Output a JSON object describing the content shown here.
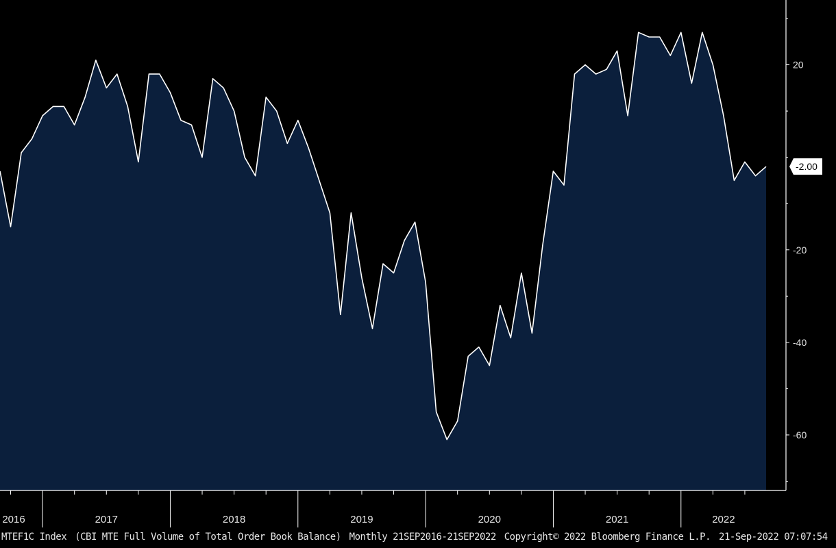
{
  "chart_data": {
    "type": "area",
    "title": "",
    "xlabel": "",
    "ylabel": "",
    "ylim": [
      -72,
      34
    ],
    "xlim": [
      "2016-09",
      "2022-09"
    ],
    "y_ticks": [
      20,
      -20,
      -40,
      -60
    ],
    "x_tick_labels": [
      "2016",
      "2017",
      "2018",
      "2019",
      "2020",
      "2021",
      "2022"
    ],
    "last_value_label": "-2.00",
    "grid": false,
    "colors": {
      "fill": "#0b1f3c",
      "line": "#ffffff",
      "background": "#000000",
      "marker_bg": "#ffffff",
      "marker_text": "#000000"
    },
    "series": [
      {
        "x": [
          "2016-09",
          "2016-10",
          "2016-11",
          "2016-12",
          "2017-01",
          "2017-02",
          "2017-03",
          "2017-04",
          "2017-05",
          "2017-06",
          "2017-07",
          "2017-08",
          "2017-09",
          "2017-10",
          "2017-11",
          "2017-12",
          "2018-01",
          "2018-02",
          "2018-03",
          "2018-04",
          "2018-05",
          "2018-06",
          "2018-07",
          "2018-08",
          "2018-09",
          "2018-10",
          "2018-11",
          "2018-12",
          "2019-01",
          "2019-02",
          "2019-03",
          "2019-04",
          "2019-05",
          "2019-06",
          "2019-07",
          "2019-08",
          "2019-09",
          "2019-10",
          "2019-11",
          "2019-12",
          "2020-01",
          "2020-02",
          "2020-03",
          "2020-04",
          "2020-05",
          "2020-06",
          "2020-07",
          "2020-08",
          "2020-09",
          "2020-10",
          "2020-11",
          "2020-12",
          "2021-01",
          "2021-02",
          "2021-03",
          "2021-04",
          "2021-05",
          "2021-06",
          "2021-07",
          "2021-08",
          "2021-09",
          "2021-10",
          "2021-11",
          "2021-12",
          "2022-01",
          "2022-02",
          "2022-03",
          "2022-04",
          "2022-05",
          "2022-06",
          "2022-07",
          "2022-08",
          "2022-09"
        ],
        "values": [
          -3,
          -15,
          1,
          4,
          9,
          11,
          11,
          7,
          13,
          21,
          15,
          18,
          11,
          -1,
          18,
          18,
          14,
          8,
          7,
          0,
          17,
          15,
          10,
          0,
          -4,
          13,
          10,
          3,
          8,
          2,
          -5,
          -12,
          -34,
          -12,
          -26,
          -37,
          -23,
          -25,
          -18,
          -14,
          -27,
          -55,
          -61,
          -57,
          -43,
          -41,
          -45,
          -32,
          -39,
          -25,
          -38,
          -19,
          -3,
          -6,
          18,
          20,
          18,
          19,
          23,
          9,
          27,
          26,
          26,
          22,
          27,
          16,
          27,
          20,
          9,
          -5,
          -1,
          -4,
          -2
        ]
      }
    ]
  },
  "footer": {
    "ticker": "MTEF1C Index",
    "description": "(CBI MTE Full Volume of Total Order Book Balance)",
    "frequency_range": "Monthly 21SEP2016-21SEP2022",
    "copyright": "Copyright© 2022 Bloomberg Finance L.P.",
    "timestamp": "21-Sep-2022 07:07:54"
  }
}
